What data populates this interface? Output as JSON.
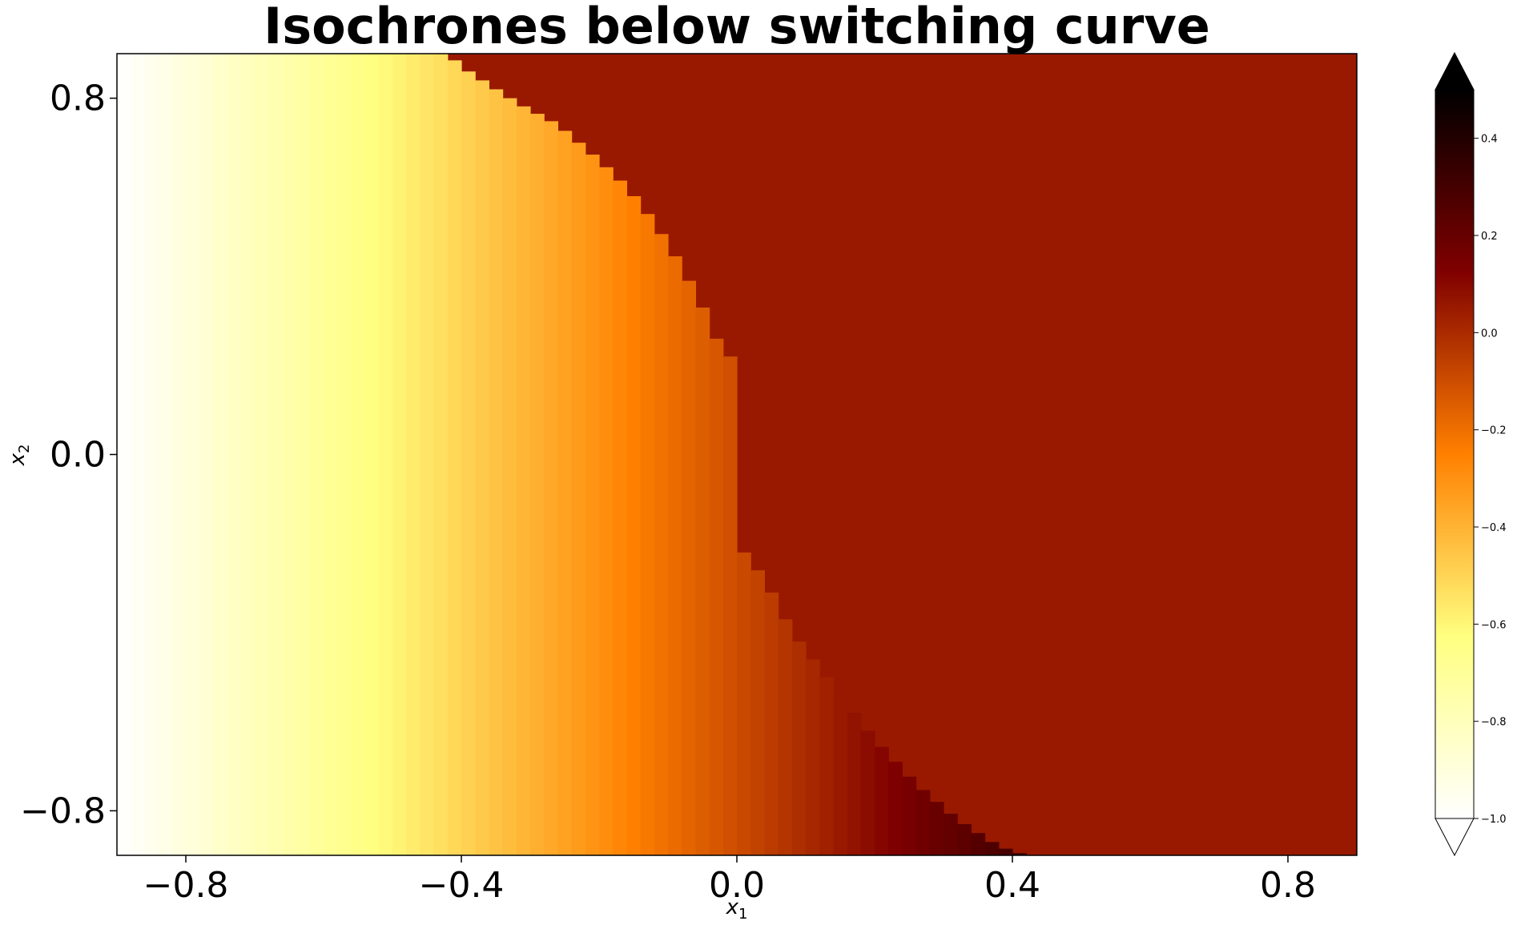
{
  "chart_data": {
    "type": "heatmap",
    "title": "Isochrones below switching curve",
    "xlabel_base": "x",
    "xlabel_sub": "1",
    "ylabel_base": "x",
    "ylabel_sub": "2",
    "xlim": [
      -0.9,
      0.9
    ],
    "ylim": [
      -0.9,
      0.9
    ],
    "x_ticks": [
      -0.8,
      -0.4,
      0.0,
      0.4,
      0.8
    ],
    "x_tick_labels": [
      "−0.8",
      "−0.4",
      "0.0",
      "0.4",
      "0.8"
    ],
    "y_ticks": [
      -0.8,
      0.0,
      0.8
    ],
    "y_tick_labels": [
      "−0.8",
      "0.0",
      "0.8"
    ],
    "grid": false,
    "colormap": "afmhot_r",
    "color_range": [
      -1.0,
      0.5
    ],
    "colorbar_extend": "both",
    "colorbar_ticks": [
      -1.0,
      -0.8,
      -0.6,
      -0.4,
      -0.2,
      0.0,
      0.2,
      0.4
    ],
    "colorbar_tick_labels": [
      "−1.0",
      "−0.8",
      "−0.6",
      "−0.4",
      "−0.2",
      "0.0",
      "0.2",
      "0.4"
    ],
    "field": {
      "cell_width": 0.02,
      "left_region_value_at_x1_start": -0.99,
      "left_region_value_slope_per_x1": 1.0,
      "right_region_value": 0.05,
      "upper_switching_curve": [
        {
          "x1": -0.42,
          "x2": 0.9
        },
        {
          "x1": -0.4,
          "x2": 0.87
        },
        {
          "x1": -0.36,
          "x2": 0.83
        },
        {
          "x1": -0.32,
          "x2": 0.79
        },
        {
          "x1": -0.26,
          "x2": 0.74
        },
        {
          "x1": -0.2,
          "x2": 0.66
        },
        {
          "x1": -0.16,
          "x2": 0.6
        },
        {
          "x1": -0.12,
          "x2": 0.52
        },
        {
          "x1": -0.08,
          "x2": 0.42
        },
        {
          "x1": -0.04,
          "x2": 0.3
        },
        {
          "x1": -0.02,
          "x2": 0.22
        }
      ],
      "lower_switching_curve": [
        {
          "x1": 0.0,
          "x2": -0.2
        },
        {
          "x1": 0.04,
          "x2": -0.28
        },
        {
          "x1": 0.08,
          "x2": -0.4
        },
        {
          "x1": 0.14,
          "x2": -0.52
        },
        {
          "x1": 0.2,
          "x2": -0.64
        },
        {
          "x1": 0.26,
          "x2": -0.74
        },
        {
          "x1": 0.32,
          "x2": -0.82
        },
        {
          "x1": 0.38,
          "x2": -0.88
        },
        {
          "x1": 0.42,
          "x2": -0.9
        }
      ]
    }
  }
}
